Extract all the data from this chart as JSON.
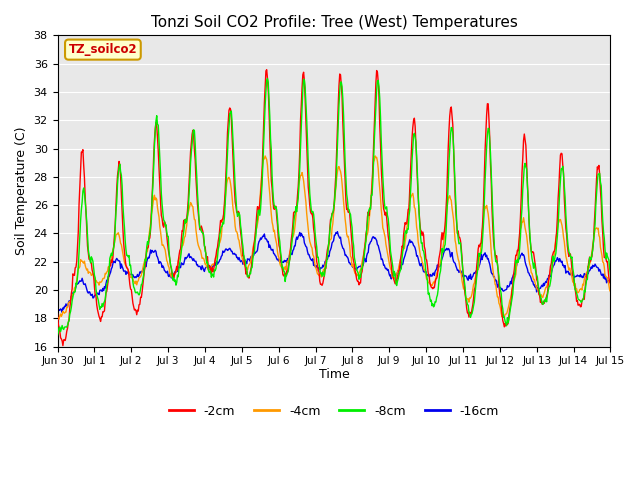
{
  "title": "Tonzi Soil CO2 Profile: Tree (West) Temperatures",
  "ylabel": "Soil Temperature (C)",
  "xlabel": "Time",
  "ylim": [
    16,
    38
  ],
  "annotation_text": "TZ_soilco2",
  "annotation_bgcolor": "#ffffcc",
  "annotation_edgecolor": "#cc9900",
  "annotation_textcolor": "#cc0000",
  "colors": {
    "-2cm": "#ff0000",
    "-4cm": "#ff9900",
    "-8cm": "#00ee00",
    "-16cm": "#0000ee"
  },
  "legend_labels": [
    "-2cm",
    "-4cm",
    "-8cm",
    "-16cm"
  ],
  "bg_color": "#e8e8e8",
  "xtick_labels": [
    "Jun 30",
    "Jul 1",
    "Jul 2",
    "Jul 3",
    "Jul 4",
    "Jul 5",
    "Jul 6",
    "Jul 7",
    "Jul 8",
    "Jul 9",
    "Jul 10",
    "Jul 11",
    "Jul 12",
    "Jul 13",
    "Jul 14",
    "Jul 15"
  ],
  "n_points_per_day": 48,
  "n_days": 15
}
